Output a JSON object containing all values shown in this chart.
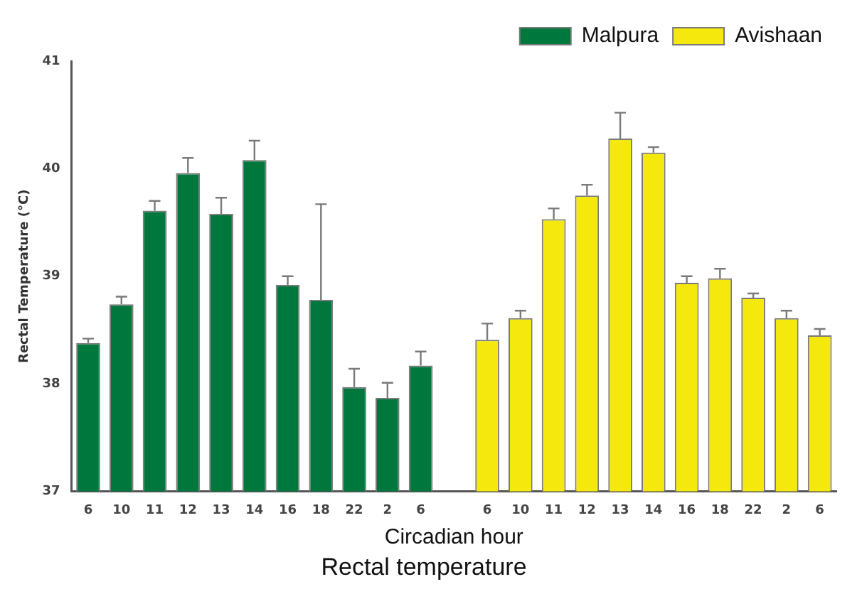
{
  "chart_data": {
    "type": "bar",
    "title": "Rectal temperature",
    "xlabel": "Circadian hour",
    "ylabel": "Rectal Temperature (°C)",
    "categories": [
      "6",
      "10",
      "11",
      "12",
      "13",
      "14",
      "16",
      "18",
      "22",
      "2",
      "6",
      null,
      "6",
      "10",
      "11",
      "12",
      "13",
      "14",
      "16",
      "18",
      "22",
      "2",
      "6"
    ],
    "series": [
      {
        "name": "Malpura",
        "color": "#00773c",
        "values": [
          38.38,
          38.74,
          39.61,
          39.96,
          39.58,
          40.08,
          38.92,
          38.78,
          37.97,
          37.87,
          38.17,
          null,
          null,
          null,
          null,
          null,
          null,
          null,
          null,
          null,
          null,
          null,
          null
        ],
        "errors": [
          [
            38.38,
            38.42
          ],
          [
            38.74,
            38.81
          ],
          [
            39.61,
            39.7
          ],
          [
            39.96,
            40.1
          ],
          [
            39.58,
            39.73
          ],
          [
            40.08,
            40.26
          ],
          [
            38.92,
            39.0
          ],
          [
            38.78,
            39.67
          ],
          [
            37.97,
            38.14
          ],
          [
            37.87,
            38.01
          ],
          [
            38.17,
            38.3
          ],
          null,
          null,
          null,
          null,
          null,
          null,
          null,
          null,
          null,
          null,
          null,
          null
        ]
      },
      {
        "name": "Avishaan",
        "color": "#f5e80c",
        "values": [
          null,
          null,
          null,
          null,
          null,
          null,
          null,
          null,
          null,
          null,
          null,
          null,
          38.41,
          38.61,
          39.53,
          39.75,
          40.28,
          40.15,
          38.94,
          38.98,
          38.8,
          38.61,
          38.45
        ],
        "errors": [
          null,
          null,
          null,
          null,
          null,
          null,
          null,
          null,
          null,
          null,
          null,
          null,
          [
            38.41,
            38.56
          ],
          [
            38.61,
            38.68
          ],
          [
            39.53,
            39.63
          ],
          [
            39.75,
            39.85
          ],
          [
            40.28,
            40.52
          ],
          [
            40.15,
            40.2
          ],
          [
            38.94,
            39.0
          ],
          [
            38.98,
            39.07
          ],
          [
            38.8,
            38.84
          ],
          [
            38.61,
            38.68
          ],
          [
            38.45,
            38.51
          ]
        ]
      }
    ],
    "ylim": [
      37,
      41
    ],
    "yticks": [
      37,
      38,
      39,
      40,
      41
    ],
    "grid": false,
    "legend": "top right"
  }
}
